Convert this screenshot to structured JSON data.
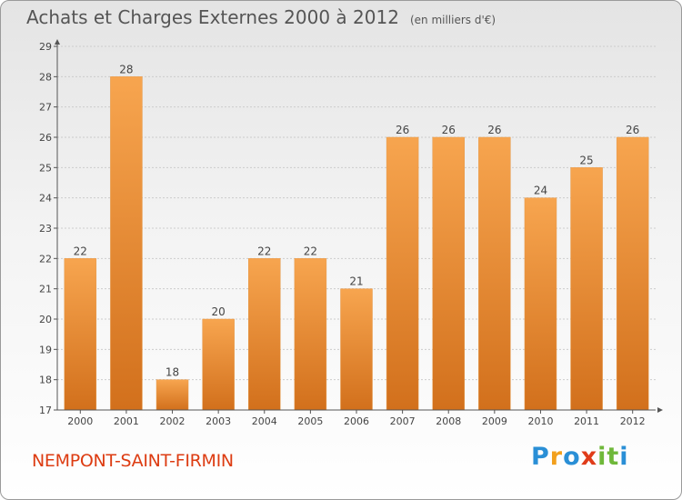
{
  "title": "Achats et Charges Externes 2000 à 2012",
  "subtitle": "(en milliers d'€)",
  "commune": "NEMPONT-SAINT-FIRMIN",
  "logo": {
    "letters": [
      "P",
      "r",
      "o",
      "x",
      "i",
      "t",
      "i"
    ],
    "colors": [
      "#2a8fd6",
      "#f2a01d",
      "#2a8fd6",
      "#e03c1a",
      "#6fb83a",
      "#6fb83a",
      "#2a8fd6"
    ]
  },
  "colors": {
    "bar_top": "#f7a54f",
    "bar_bottom": "#d2701c",
    "axis": "#555555",
    "grid": "#cccccc"
  },
  "chart_data": {
    "type": "bar",
    "title": "Achats et Charges Externes 2000 à 2012",
    "subtitle": "(en milliers d'€)",
    "categories": [
      "2000",
      "2001",
      "2002",
      "2003",
      "2004",
      "2005",
      "2006",
      "2007",
      "2008",
      "2009",
      "2010",
      "2011",
      "2012"
    ],
    "values": [
      22,
      28,
      18,
      20,
      22,
      22,
      21,
      26,
      26,
      26,
      24,
      25,
      26
    ],
    "ylim": [
      17,
      29
    ],
    "yticks": [
      17,
      18,
      19,
      20,
      21,
      22,
      23,
      24,
      25,
      26,
      27,
      28,
      29
    ],
    "grid": true,
    "xlabel": "",
    "ylabel": ""
  }
}
